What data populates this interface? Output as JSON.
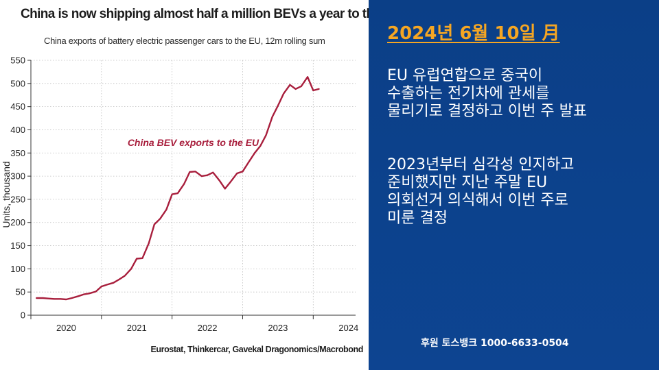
{
  "chart_data": {
    "type": "line",
    "title": "China is now shipping almost half a million BEVs a year to the EU",
    "subtitle": "China exports of battery electric passenger cars to the EU, 12m rolling sum",
    "ylabel": "Units, thousand",
    "xlabel": "",
    "source": "Eurostat, Thinkercar, Gavekal Dragonomics/Macrobond",
    "ylim": [
      0,
      550
    ],
    "yticks": [
      "0",
      "50",
      "100",
      "150",
      "200",
      "250",
      "300",
      "350",
      "400",
      "450",
      "500",
      "550"
    ],
    "xlim": [
      2019.5,
      2024.1
    ],
    "xticks": [
      {
        "value": 2020,
        "label": "2020"
      },
      {
        "value": 2021,
        "label": "2021"
      },
      {
        "value": 2022,
        "label": "2022"
      },
      {
        "value": 2023,
        "label": "2023"
      },
      {
        "value": 2024,
        "label": "2024"
      }
    ],
    "grid": true,
    "series": [
      {
        "name": "China BEV exports to the EU",
        "color": "#a81e3c",
        "points": [
          [
            2019.58,
            37
          ],
          [
            2019.67,
            37
          ],
          [
            2019.75,
            36
          ],
          [
            2019.83,
            35
          ],
          [
            2019.92,
            35
          ],
          [
            2020.0,
            34
          ],
          [
            2020.08,
            37
          ],
          [
            2020.17,
            41
          ],
          [
            2020.25,
            45
          ],
          [
            2020.33,
            47
          ],
          [
            2020.42,
            51
          ],
          [
            2020.5,
            62
          ],
          [
            2020.58,
            66
          ],
          [
            2020.67,
            70
          ],
          [
            2020.75,
            77
          ],
          [
            2020.83,
            85
          ],
          [
            2020.92,
            100
          ],
          [
            2021.0,
            122
          ],
          [
            2021.08,
            123
          ],
          [
            2021.17,
            155
          ],
          [
            2021.25,
            196
          ],
          [
            2021.33,
            208
          ],
          [
            2021.42,
            228
          ],
          [
            2021.5,
            261
          ],
          [
            2021.58,
            263
          ],
          [
            2021.67,
            283
          ],
          [
            2021.75,
            309
          ],
          [
            2021.83,
            310
          ],
          [
            2021.92,
            300
          ],
          [
            2022.0,
            302
          ],
          [
            2022.08,
            308
          ],
          [
            2022.17,
            291
          ],
          [
            2022.25,
            273
          ],
          [
            2022.33,
            288
          ],
          [
            2022.42,
            306
          ],
          [
            2022.5,
            310
          ],
          [
            2022.58,
            329
          ],
          [
            2022.67,
            350
          ],
          [
            2022.75,
            365
          ],
          [
            2022.83,
            388
          ],
          [
            2022.92,
            428
          ],
          [
            2023.0,
            452
          ],
          [
            2023.08,
            478
          ],
          [
            2023.17,
            497
          ],
          [
            2023.25,
            488
          ],
          [
            2023.33,
            494
          ],
          [
            2023.42,
            514
          ],
          [
            2023.5,
            485
          ],
          [
            2023.58,
            488
          ]
        ]
      }
    ],
    "annotations": [
      {
        "text": "China BEV exports to the EU",
        "x": 2021.8,
        "y": 365
      }
    ]
  },
  "side": {
    "date": "2024년 6월 10일 月",
    "paragraph1": [
      "EU 유럽연합으로 중국이",
      "수출하는 전기차에 관세를",
      "물리기로 결정하고 이번 주 발표"
    ],
    "paragraph2": [
      "2023년부터 심각성 인지하고",
      "준비했지만 지난 주말 EU",
      "의회선거 의식해서 이번 주로",
      "미룬 결정"
    ],
    "sponsor": "후원 토스뱅크 1000-6633-0504"
  }
}
